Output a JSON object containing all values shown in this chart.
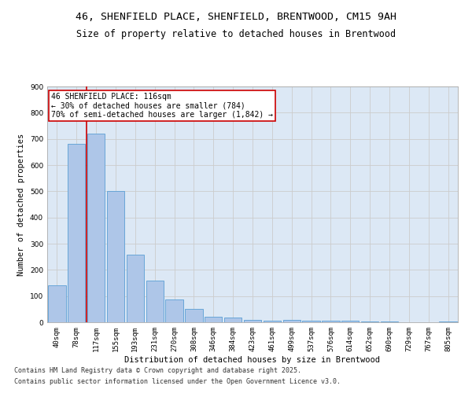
{
  "title1": "46, SHENFIELD PLACE, SHENFIELD, BRENTWOOD, CM15 9AH",
  "title2": "Size of property relative to detached houses in Brentwood",
  "xlabel": "Distribution of detached houses by size in Brentwood",
  "ylabel": "Number of detached properties",
  "categories": [
    "40sqm",
    "78sqm",
    "117sqm",
    "155sqm",
    "193sqm",
    "231sqm",
    "270sqm",
    "308sqm",
    "346sqm",
    "384sqm",
    "423sqm",
    "461sqm",
    "499sqm",
    "537sqm",
    "576sqm",
    "614sqm",
    "652sqm",
    "690sqm",
    "729sqm",
    "767sqm",
    "805sqm"
  ],
  "values": [
    140,
    680,
    720,
    500,
    258,
    158,
    88,
    50,
    22,
    18,
    10,
    7,
    10,
    7,
    6,
    5,
    4,
    2,
    1,
    1,
    2
  ],
  "bar_color": "#aec6e8",
  "bar_edge_color": "#5a9fd4",
  "red_line_index": 2,
  "annotation_title": "46 SHENFIELD PLACE: 116sqm",
  "annotation_line1": "← 30% of detached houses are smaller (784)",
  "annotation_line2": "70% of semi-detached houses are larger (1,842) →",
  "annotation_box_color": "#ffffff",
  "annotation_box_edge_color": "#cc0000",
  "red_line_color": "#cc0000",
  "ylim": [
    0,
    900
  ],
  "yticks": [
    0,
    100,
    200,
    300,
    400,
    500,
    600,
    700,
    800,
    900
  ],
  "grid_color": "#cccccc",
  "bg_color": "#dce8f5",
  "footer1": "Contains HM Land Registry data © Crown copyright and database right 2025.",
  "footer2": "Contains public sector information licensed under the Open Government Licence v3.0.",
  "title_fontsize": 9.5,
  "subtitle_fontsize": 8.5,
  "axis_label_fontsize": 7.5,
  "tick_fontsize": 6.5,
  "annotation_fontsize": 7,
  "footer_fontsize": 6
}
